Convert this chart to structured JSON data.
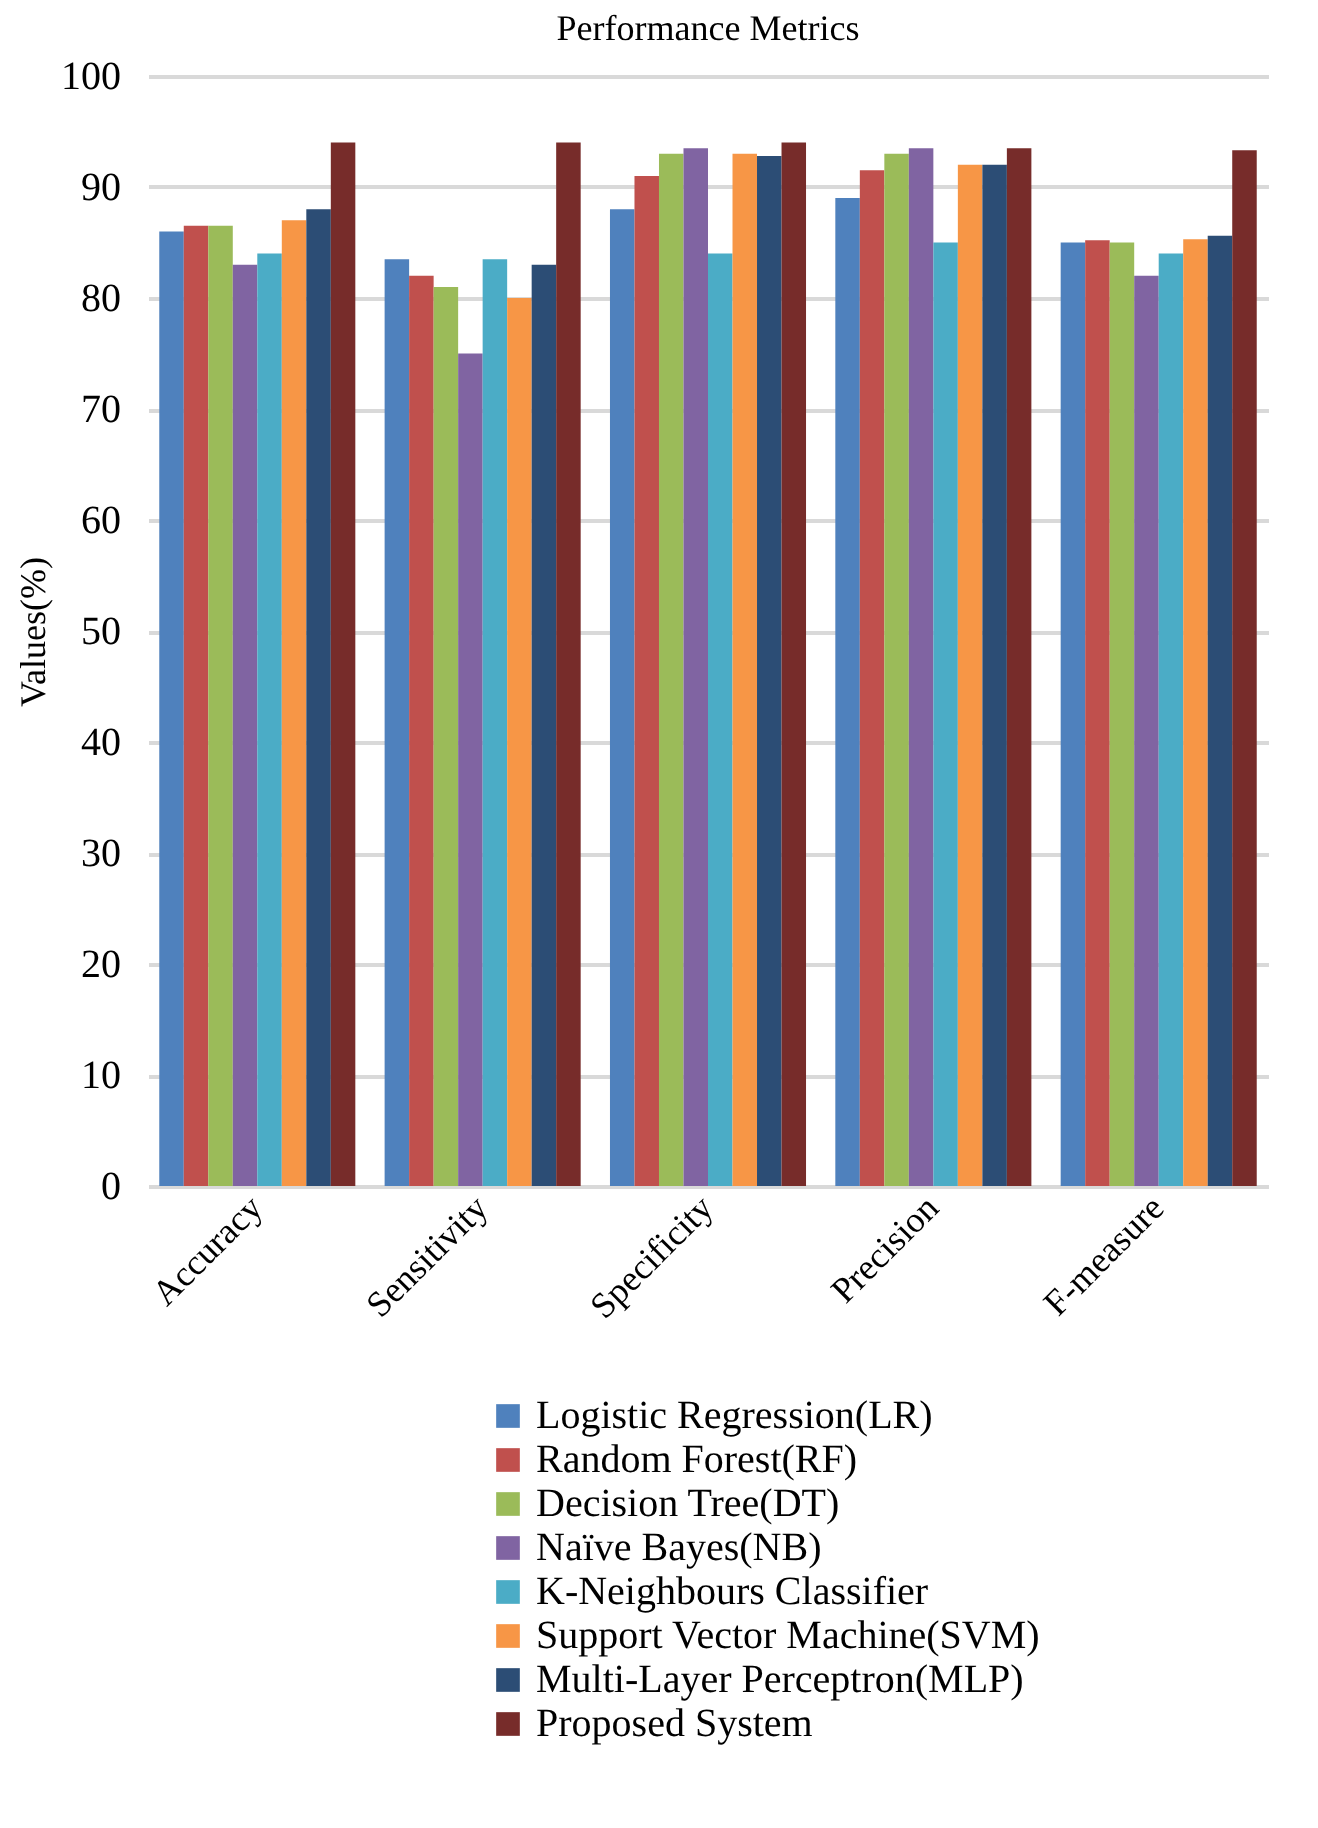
{
  "chart_data": {
    "type": "bar",
    "title": "Performance Metrics",
    "ylabel": "Values(%)",
    "categories": [
      "Accuracy",
      "Sensitivity",
      "Specificity",
      "Precision",
      "F-measure"
    ],
    "series": [
      {
        "name": "Logistic Regression(LR)",
        "color": "#4f81bd",
        "values": [
          86,
          83.5,
          88,
          89,
          85
        ]
      },
      {
        "name": "Random Forest(RF)",
        "color": "#c0504d",
        "values": [
          86.5,
          82,
          91,
          91.5,
          85.2
        ]
      },
      {
        "name": "Decision Tree(DT)",
        "color": "#9bbb59",
        "values": [
          86.5,
          81,
          93,
          93,
          85
        ]
      },
      {
        "name": "Naïve Bayes(NB)",
        "color": "#8064a2",
        "values": [
          83,
          75,
          93.5,
          93.5,
          82
        ]
      },
      {
        "name": "K-Neighbours Classifier",
        "color": "#4bacc6",
        "values": [
          84,
          83.5,
          84,
          85,
          84
        ]
      },
      {
        "name": "Support Vector Machine(SVM)",
        "color": "#f79646",
        "values": [
          87,
          80,
          93,
          92,
          85.3
        ]
      },
      {
        "name": "Multi-Layer Perceptron(MLP)",
        "color": "#2c4d75",
        "values": [
          88,
          83,
          92.8,
          92,
          85.6
        ]
      },
      {
        "name": "Proposed System",
        "color": "#772c2a",
        "values": [
          94,
          94,
          94,
          93.5,
          93.3
        ]
      }
    ],
    "ylim": [
      0,
      100
    ],
    "yticks": [
      0,
      10,
      20,
      30,
      40,
      50,
      60,
      70,
      80,
      90,
      100
    ],
    "grid": "y",
    "legend": "bottom"
  }
}
